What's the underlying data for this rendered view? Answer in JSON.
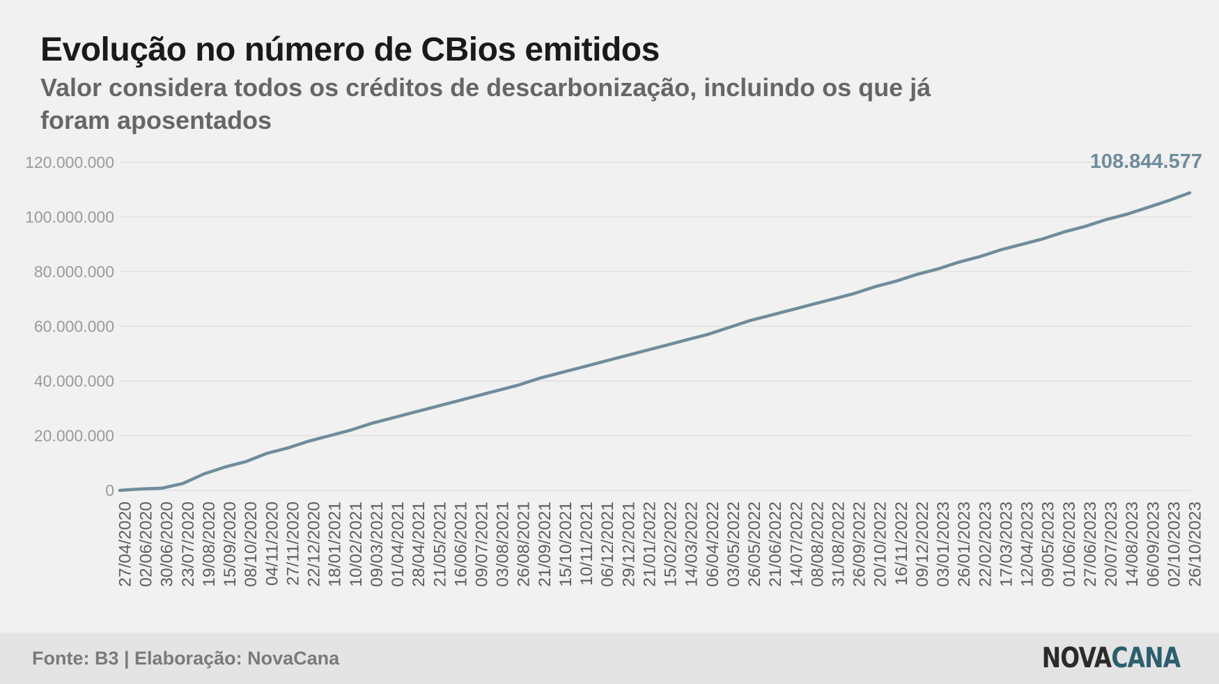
{
  "header": {
    "title": "Evolução no número de CBios emitidos",
    "subtitle": "Valor considera todos os créditos de descarbonização, incluindo os que já foram aposentados"
  },
  "footer": {
    "source": "Fonte: B3 | Elaboração: NovaCana",
    "logo_part1": "NOVA",
    "logo_part2": "CANA"
  },
  "colors": {
    "line": "#6f8c9b",
    "gridline": "#dddddd",
    "axis_text": "#9a9a9a",
    "date_text": "#5e5e5e",
    "end_label": "#6f8c9b"
  },
  "chart_data": {
    "type": "line",
    "title": "Evolução no número de CBios emitidos",
    "subtitle": "Valor considera todos os créditos de descarbonização, incluindo os que já foram aposentados",
    "xlabel": "",
    "ylabel": "",
    "ylim": [
      0,
      120000000
    ],
    "yticks": [
      0,
      20000000,
      40000000,
      60000000,
      80000000,
      100000000,
      120000000
    ],
    "ytick_labels": [
      "0",
      "20.000.000",
      "40.000.000",
      "60.000.000",
      "80.000.000",
      "100.000.000",
      "120.000.000"
    ],
    "grid": true,
    "xtick_labels": [
      "27/04/2020",
      "02/06/2020",
      "30/06/2020",
      "23/07/2020",
      "19/08/2020",
      "15/09/2020",
      "08/10/2020",
      "04/11/2020",
      "27/11/2020",
      "22/12/2020",
      "18/01/2021",
      "10/02/2021",
      "09/03/2021",
      "01/04/2021",
      "28/04/2021",
      "21/05/2021",
      "16/06/2021",
      "09/07/2021",
      "03/08/2021",
      "26/08/2021",
      "21/09/2021",
      "15/10/2021",
      "10/11/2021",
      "06/12/2021",
      "29/12/2021",
      "21/01/2022",
      "15/02/2022",
      "14/03/2022",
      "06/04/2022",
      "03/05/2022",
      "26/05/2022",
      "21/06/2022",
      "14/07/2022",
      "08/08/2022",
      "31/08/2022",
      "26/09/2022",
      "20/10/2022",
      "16/11/2022",
      "09/12/2022",
      "03/01/2023",
      "26/01/2023",
      "22/02/2023",
      "17/03/2023",
      "12/04/2023",
      "09/05/2023",
      "01/06/2023",
      "27/06/2023",
      "20/07/2023",
      "14/08/2023",
      "06/09/2023",
      "02/10/2023",
      "26/10/2023"
    ],
    "series": [
      {
        "values": [
          0,
          500000,
          800000,
          2500000,
          6000000,
          8500000,
          10500000,
          13500000,
          15500000,
          18000000,
          20000000,
          22000000,
          24500000,
          26500000,
          28500000,
          30500000,
          32500000,
          34500000,
          36500000,
          38500000,
          41000000,
          43000000,
          45000000,
          47000000,
          49000000,
          51000000,
          53000000,
          55000000,
          57000000,
          59500000,
          62000000,
          64000000,
          66000000,
          68000000,
          70000000,
          72000000,
          74500000,
          76500000,
          79000000,
          81000000,
          83500000,
          85500000,
          88000000,
          90000000,
          92000000,
          94500000,
          96500000,
          99000000,
          101000000,
          103500000,
          106000000,
          108844577
        ]
      }
    ],
    "end_label": "108.844.577"
  }
}
